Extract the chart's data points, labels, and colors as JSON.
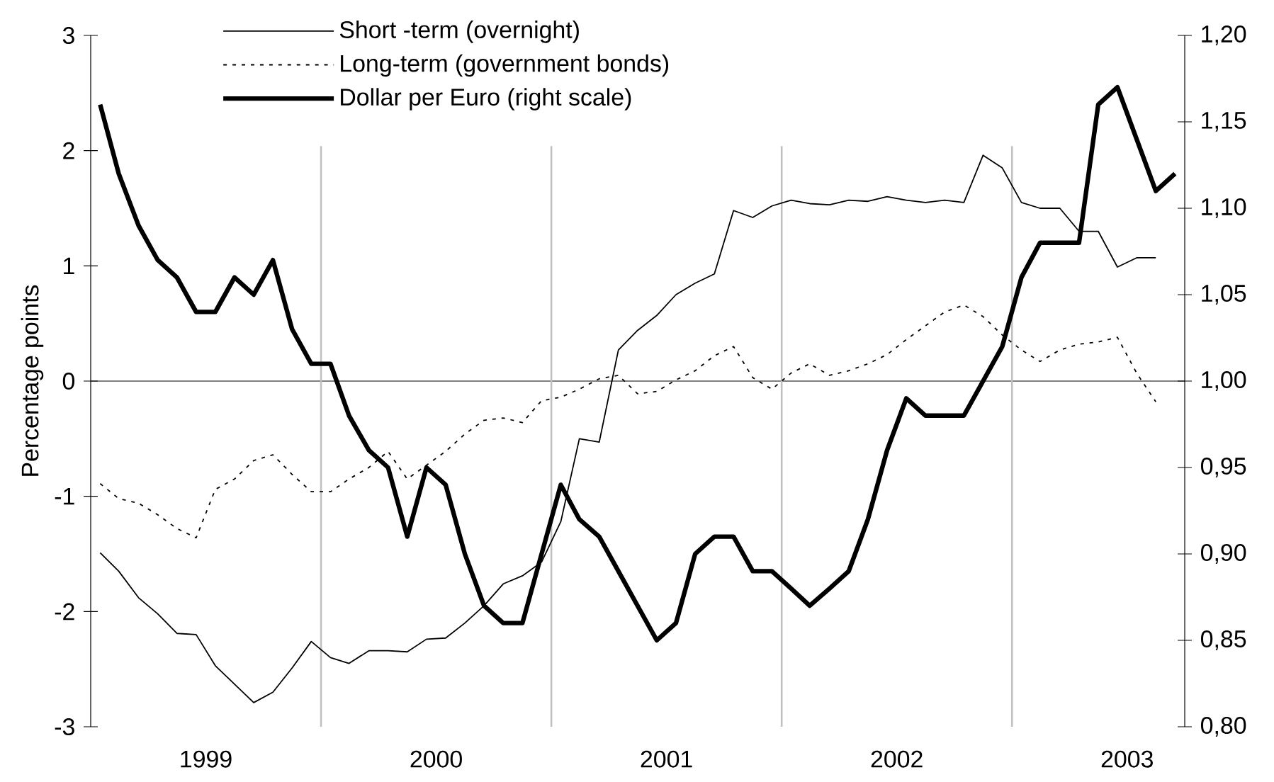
{
  "chart_data": {
    "type": "line",
    "ylabel": "Percentage points",
    "legend": "top",
    "x": [
      "1999-01-16",
      "1999-02-15",
      "1999-03-16",
      "1999-04-16",
      "1999-05-16",
      "1999-06-16",
      "1999-07-16",
      "1999-08-16",
      "1999-09-16",
      "1999-10-16",
      "1999-11-16",
      "1999-12-16",
      "2000-01-16",
      "2000-02-15",
      "2000-03-16",
      "2000-04-16",
      "2000-05-16",
      "2000-06-16",
      "2000-07-16",
      "2000-08-16",
      "2000-09-16",
      "2000-10-16",
      "2000-11-16",
      "2000-12-16",
      "2001-01-16",
      "2001-02-15",
      "2001-03-16",
      "2001-04-16",
      "2001-05-16",
      "2001-06-16",
      "2001-07-16",
      "2001-08-16",
      "2001-09-16",
      "2001-10-16",
      "2001-11-16",
      "2001-12-16",
      "2002-01-16",
      "2002-02-15",
      "2002-03-16",
      "2002-04-16",
      "2002-05-16",
      "2002-06-16",
      "2002-07-16",
      "2002-08-16",
      "2002-09-16",
      "2002-10-16",
      "2002-11-16",
      "2002-12-16",
      "2003-01-16",
      "2003-02-15",
      "2003-03-16",
      "2003-04-16",
      "2003-05-16",
      "2003-06-16",
      "2003-07-16",
      "2003-08-16",
      "2003-09-16"
    ],
    "series": [
      {
        "name": "Short -term (overnight)",
        "color": "#000000",
        "line_style": "solid",
        "values": [
          -1.49,
          -1.65,
          -1.88,
          -2.02,
          -2.19,
          -2.2,
          -2.47,
          -2.63,
          -2.79,
          -2.7,
          -2.49,
          -2.26,
          -2.4,
          -2.45,
          -2.34,
          -2.34,
          -2.35,
          -2.24,
          -2.23,
          -2.1,
          -1.95,
          -1.76,
          -1.69,
          -1.57,
          -1.22,
          -0.5,
          -0.53,
          0.27,
          0.44,
          0.57,
          0.75,
          0.85,
          0.93,
          1.48,
          1.42,
          1.52,
          1.57,
          1.54,
          1.53,
          1.57,
          1.56,
          1.6,
          1.57,
          1.55,
          1.57,
          1.55,
          1.96,
          1.85,
          1.55,
          1.5,
          1.5,
          1.3,
          1.3,
          0.99,
          1.07,
          1.07,
          null
        ]
      },
      {
        "name": "Long-term (government bonds)",
        "color": "#000000",
        "line_style": "dashed",
        "values": [
          -0.89,
          -1.02,
          -1.06,
          -1.16,
          -1.28,
          -1.36,
          -0.94,
          -0.85,
          -0.69,
          -0.64,
          -0.81,
          -0.96,
          -0.96,
          -0.85,
          -0.75,
          -0.61,
          -0.85,
          -0.73,
          -0.61,
          -0.46,
          -0.34,
          -0.32,
          -0.36,
          -0.17,
          -0.14,
          -0.07,
          0.02,
          0.05,
          -0.11,
          -0.09,
          0.01,
          0.09,
          0.22,
          0.3,
          0.03,
          -0.07,
          0.07,
          0.15,
          0.05,
          0.09,
          0.15,
          0.23,
          0.36,
          0.48,
          0.6,
          0.66,
          0.56,
          0.4,
          0.27,
          0.17,
          0.27,
          0.32,
          0.34,
          0.38,
          0.07,
          -0.18,
          null
        ]
      },
      {
        "name": "Dollar per Euro (right scale)",
        "color": "#000000",
        "line_style": "solid",
        "axis": "y2",
        "values": [
          1.16,
          1.12,
          1.09,
          1.07,
          1.06,
          1.04,
          1.04,
          1.06,
          1.05,
          1.07,
          1.03,
          1.01,
          1.01,
          0.98,
          0.96,
          0.95,
          0.91,
          0.95,
          0.94,
          0.9,
          0.87,
          0.86,
          0.86,
          0.9,
          0.94,
          0.92,
          0.91,
          0.89,
          0.87,
          0.85,
          0.86,
          0.9,
          0.91,
          0.91,
          0.89,
          0.89,
          0.88,
          0.87,
          0.88,
          0.89,
          0.92,
          0.96,
          0.99,
          0.98,
          0.98,
          0.98,
          1,
          1.02,
          1.06,
          1.08,
          1.08,
          1.08,
          1.16,
          1.17,
          1.14,
          1.11,
          1.12
        ]
      }
    ],
    "xlim": [
      "1999-01-01",
      "2003-10-01"
    ],
    "xticks": [
      {
        "value": "1999-07-01",
        "label": "1999"
      },
      {
        "value": "2000-07-01",
        "label": "2000"
      },
      {
        "value": "2001-07-01",
        "label": "2001"
      },
      {
        "value": "2002-07-01",
        "label": "2002"
      },
      {
        "value": "2003-07-01",
        "label": "2003"
      }
    ],
    "ylim": [
      -3,
      3
    ],
    "yticks": [
      -3,
      -2,
      -1,
      0,
      1,
      2,
      3
    ],
    "y2lim": [
      0.8,
      1.2
    ],
    "y2ticks": [
      {
        "value": 0.8,
        "label": "0,80"
      },
      {
        "value": 0.85,
        "label": "0,85"
      },
      {
        "value": 0.9,
        "label": "0,90"
      },
      {
        "value": 0.95,
        "label": "0,95"
      },
      {
        "value": 1.0,
        "label": "1,00"
      },
      {
        "value": 1.05,
        "label": "1,05"
      },
      {
        "value": 1.1,
        "label": "1,10"
      },
      {
        "value": 1.15,
        "label": "1,15"
      },
      {
        "value": 1.2,
        "label": "1,20"
      }
    ],
    "ref_lines": [
      {
        "axis": "y",
        "value": 0,
        "color": "#000000"
      },
      {
        "axis": "x",
        "value": "2000-01-01",
        "color": "#c0c0c0"
      },
      {
        "axis": "x",
        "value": "2001-01-01",
        "color": "#c0c0c0"
      },
      {
        "axis": "x",
        "value": "2002-01-01",
        "color": "#c0c0c0"
      },
      {
        "axis": "x",
        "value": "2003-01-01",
        "color": "#c0c0c0"
      }
    ]
  }
}
